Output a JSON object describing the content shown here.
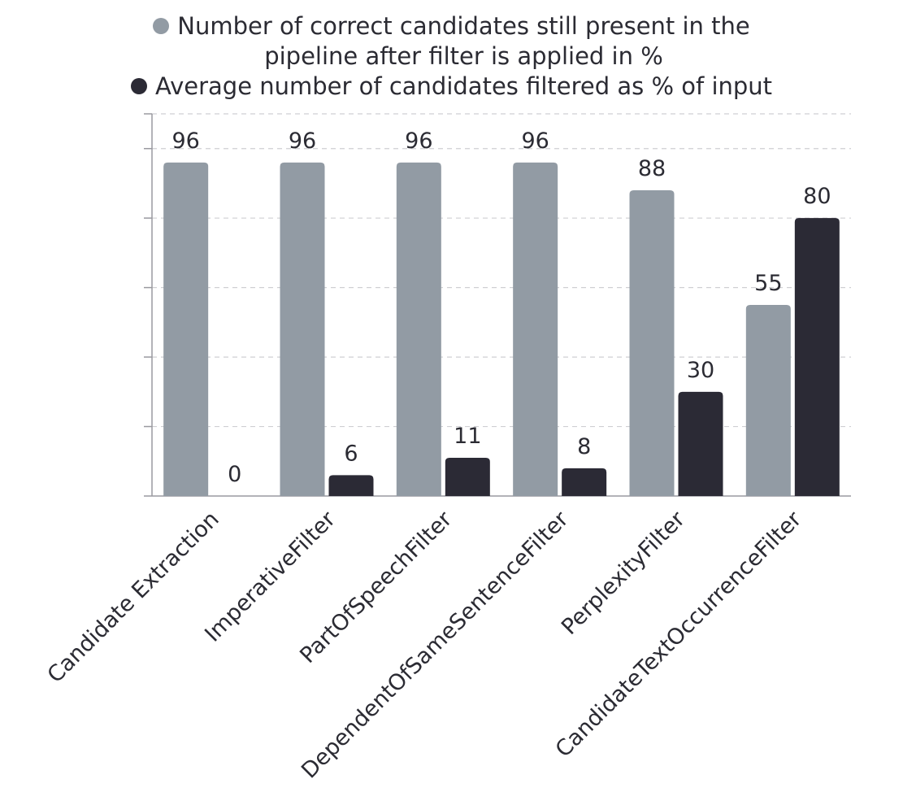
{
  "chart_data": {
    "type": "bar",
    "categories": [
      "Candidate Extraction",
      "ImperativeFilter",
      "PartOfSpeechFilter",
      "DependentOfSameSentenceFilter",
      "PerplexityFilter",
      "CandidateTextOccurrenceFilter"
    ],
    "series": [
      {
        "name": "Number of correct candidates still present in the pipeline after filter is applied in %",
        "values": [
          96,
          96,
          96,
          96,
          88,
          55
        ],
        "color": "#929ba4"
      },
      {
        "name": "Average number of candidates filtered as % of input",
        "values": [
          0,
          6,
          11,
          8,
          30,
          80
        ],
        "color": "#2b2a35"
      }
    ],
    "ylim": [
      0,
      110
    ],
    "ytick_step": 20,
    "grid": true,
    "data_labels": true,
    "legend_position": "top"
  },
  "legend": {
    "items": [
      {
        "line1": "Number of correct candidates still present in the",
        "line2": "pipeline after filter is applied in %",
        "color": "#929ba4"
      },
      {
        "line1": "Average number of candidates filtered as % of input",
        "line2": "",
        "color": "#2b2a35"
      }
    ]
  }
}
